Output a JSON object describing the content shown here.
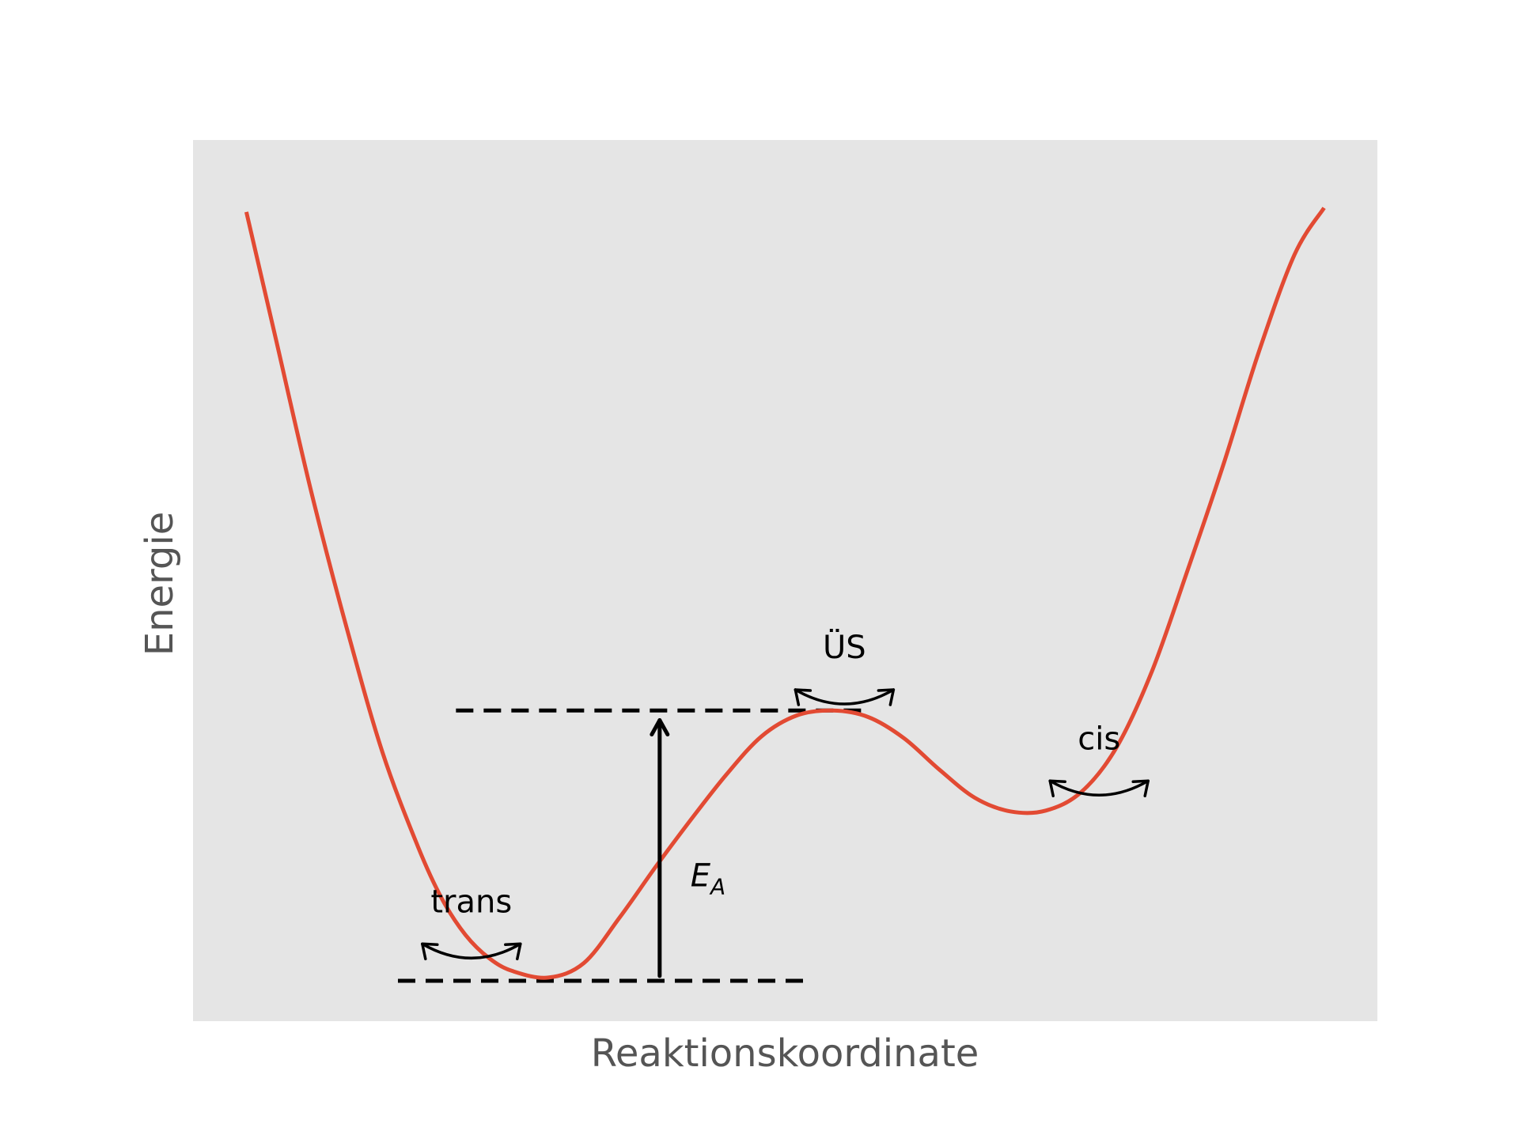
{
  "chart_data": {
    "type": "line",
    "title": "",
    "xlabel": "Reaktionskoordinate",
    "ylabel": "Energie",
    "xlim": [
      0,
      1
    ],
    "ylim": [
      0,
      1
    ],
    "grid": false,
    "show_ticks": false,
    "colors": {
      "curve": "#e24a33",
      "axes_background": "#e5e5e5",
      "label_text": "#555555",
      "annotation": "#000000"
    },
    "series": [
      {
        "x": [
          0.045,
          0.07,
          0.1,
          0.13,
          0.16,
          0.19,
          0.21,
          0.23,
          0.25,
          0.27,
          0.3,
          0.33,
          0.36,
          0.39,
          0.42,
          0.45,
          0.48,
          0.51,
          0.54,
          0.57,
          0.6,
          0.63,
          0.66,
          0.69,
          0.72,
          0.75,
          0.78,
          0.81,
          0.84,
          0.87,
          0.9,
          0.93,
          0.955
        ],
        "y": [
          0.953,
          0.795,
          0.605,
          0.436,
          0.283,
          0.166,
          0.102,
          0.057,
          0.028,
          0.012,
          0.004,
          0.022,
          0.078,
          0.14,
          0.199,
          0.255,
          0.303,
          0.329,
          0.335,
          0.327,
          0.301,
          0.262,
          0.227,
          0.21,
          0.211,
          0.234,
          0.29,
          0.385,
          0.51,
          0.64,
          0.78,
          0.9,
          0.958
        ]
      }
    ],
    "reference_lines": [
      {
        "y": 0.0,
        "x_start": 0.173,
        "x_end": 0.517,
        "style": "dashed"
      },
      {
        "y": 0.335,
        "x_start": 0.222,
        "x_end": 0.565,
        "style": "dashed"
      }
    ],
    "arrows": [
      {
        "x": 0.394,
        "y_start": 0.006,
        "y_end": 0.323
      }
    ],
    "annotations": [
      {
        "text": "trans",
        "x": 0.235,
        "y": 0.085,
        "oscillation": true
      },
      {
        "text": "ÜS",
        "x": 0.55,
        "y": 0.4,
        "oscillation": true
      },
      {
        "text": "cis",
        "x": 0.765,
        "y": 0.287,
        "oscillation": true
      },
      {
        "text_base": "E",
        "text_sub": "A",
        "x": 0.42,
        "y": 0.117,
        "italic": true
      }
    ]
  }
}
